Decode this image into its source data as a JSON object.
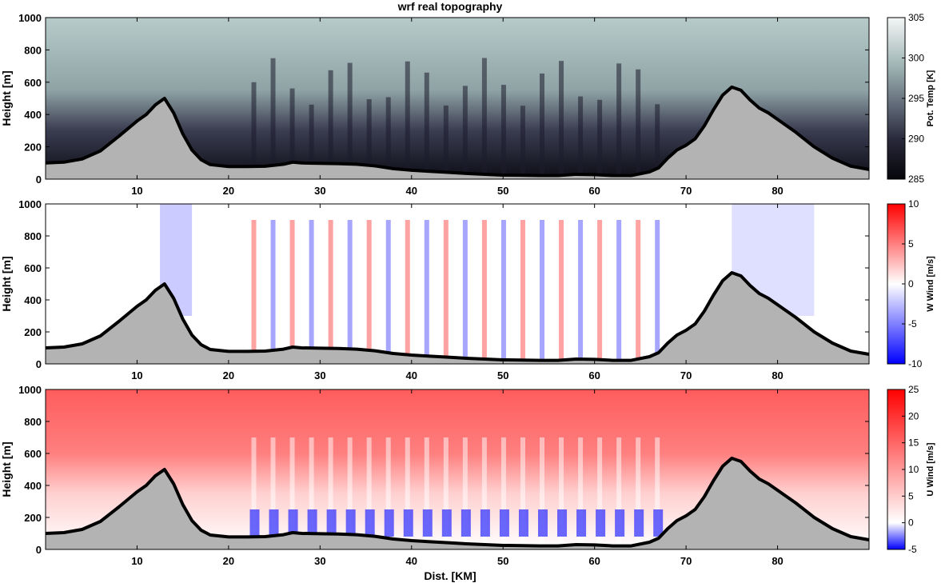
{
  "title": "wrf real topography",
  "xlabel": "Dist. [KM]",
  "colors": {
    "terrain_fill": "#b3b3b3",
    "terrain_line": "#000000",
    "theta_low": "#0a0a10",
    "theta_high": "#f2f5f4",
    "div_neg": "#0000ff",
    "div_zero": "#ffffff",
    "div_pos": "#ff0000"
  },
  "chart_data": [
    {
      "type": "heatmap",
      "title": "wrf real topography",
      "variable": "potential temperature",
      "xlabel": "",
      "ylabel": "Height [m]",
      "colorbar_label": "Pot. Temp [K]",
      "colorbar_ticks": [
        "305",
        "300",
        "295",
        "290",
        "285"
      ],
      "colorbar_range": [
        285,
        305
      ],
      "colormap": "bone-like (dark to light gray-cyan)",
      "xlim": [
        0,
        90
      ],
      "ylim": [
        0,
        1000
      ],
      "x_ticks": [
        "10",
        "20",
        "30",
        "40",
        "50",
        "60",
        "70",
        "80"
      ],
      "y_ticks": [
        "0",
        "200",
        "400",
        "600",
        "800",
        "1000"
      ]
    },
    {
      "type": "heatmap",
      "variable": "vertical wind",
      "xlabel": "",
      "ylabel": "Height [m]",
      "colorbar_label": "W Wind [m/s]",
      "colorbar_ticks": [
        "10",
        "5",
        "0",
        "-5",
        "-10"
      ],
      "colorbar_range": [
        -10,
        10
      ],
      "colormap": "blue-white-red diverging",
      "xlim": [
        0,
        90
      ],
      "ylim": [
        0,
        1000
      ],
      "x_ticks": [
        "10",
        "20",
        "30",
        "40",
        "50",
        "60",
        "70",
        "80"
      ],
      "y_ticks": [
        "0",
        "200",
        "400",
        "600",
        "800",
        "1000"
      ]
    },
    {
      "type": "heatmap",
      "variable": "horizontal wind",
      "xlabel": "Dist. [KM]",
      "ylabel": "Height [m]",
      "colorbar_label": "U Wind [m/s]",
      "colorbar_ticks": [
        "25",
        "20",
        "15",
        "10",
        "5",
        "0",
        "-5"
      ],
      "colorbar_range": [
        -5,
        25
      ],
      "colormap": "blue-white-red diverging",
      "xlim": [
        0,
        90
      ],
      "ylim": [
        0,
        1000
      ],
      "x_ticks": [
        "10",
        "20",
        "30",
        "40",
        "50",
        "60",
        "70",
        "80"
      ],
      "y_ticks": [
        "0",
        "200",
        "400",
        "600",
        "800",
        "1000"
      ]
    }
  ],
  "terrain_profile": {
    "x_km": [
      0,
      2,
      4,
      6,
      8,
      10,
      11,
      12,
      13,
      14,
      15,
      16,
      17,
      18,
      20,
      22,
      24,
      26,
      27,
      28,
      30,
      32,
      34,
      36,
      38,
      40,
      42,
      44,
      46,
      48,
      50,
      52,
      54,
      56,
      58,
      60,
      62,
      64,
      66,
      67,
      68,
      69,
      70,
      71,
      72,
      73,
      74,
      75,
      76,
      77,
      78,
      79,
      80,
      82,
      84,
      86,
      88,
      90
    ],
    "height_m": [
      100,
      105,
      125,
      175,
      265,
      360,
      400,
      460,
      500,
      410,
      280,
      180,
      120,
      90,
      78,
      78,
      80,
      92,
      105,
      100,
      98,
      96,
      92,
      82,
      65,
      55,
      48,
      42,
      35,
      30,
      25,
      24,
      22,
      22,
      30,
      28,
      22,
      22,
      45,
      70,
      130,
      180,
      210,
      250,
      330,
      430,
      520,
      570,
      550,
      490,
      440,
      410,
      370,
      290,
      200,
      130,
      80,
      60
    ]
  }
}
